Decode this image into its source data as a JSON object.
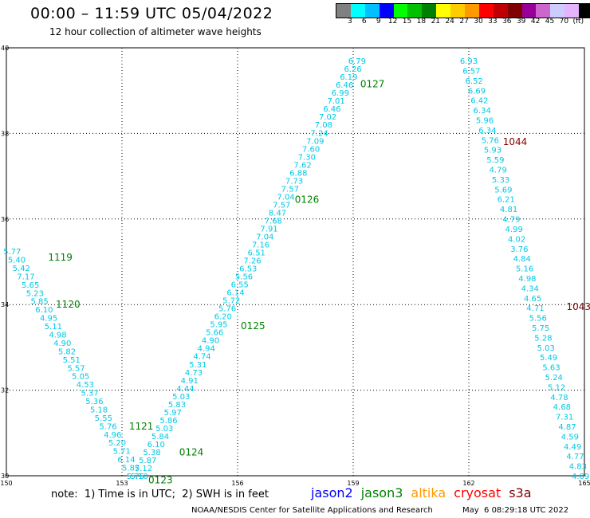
{
  "title": "00:00 – 11:59 UTC 05/04/2022",
  "subtitle": "12 hour collection of altimeter wave heights",
  "colorbar": {
    "colors": [
      "#808080",
      "#00ffff",
      "#00c0ff",
      "#0000ff",
      "#00ff00",
      "#00c000",
      "#008000",
      "#ffff00",
      "#ffcc00",
      "#ff9900",
      "#ff0000",
      "#c00000",
      "#800000",
      "#990099",
      "#cc66cc",
      "#ccccff",
      "#e6b3ff",
      "#000000"
    ],
    "labels": [
      "3",
      "6",
      "9",
      "12",
      "15",
      "18",
      "21",
      "24",
      "27",
      "30",
      "33",
      "36",
      "39",
      "42",
      "45",
      "70",
      "(ft)"
    ]
  },
  "map": {
    "lon_ticks": [
      "150",
      "153",
      "156",
      "159",
      "162",
      "165"
    ],
    "lat_ticks": [
      "30",
      "32",
      "34",
      "36",
      "38",
      "40"
    ],
    "lon_range": [
      150,
      165
    ],
    "lat_range": [
      30,
      40
    ],
    "wave_color": "#00c8e6",
    "tracks": [
      {
        "lon_start": 150.15,
        "lat_start": 35.25,
        "lon_end": 153.35,
        "lat_end": 30.0,
        "values": [
          "5.77",
          "5.40",
          "5.42",
          "7.17",
          "5.65",
          "5.23",
          "5.85",
          "6.10",
          "4.95",
          "5.11",
          "4.98",
          "4.90",
          "5.82",
          "5.51",
          "5.57",
          "5.05",
          "4.53",
          "5.37",
          "5.36",
          "5.18",
          "5.55",
          "5.76",
          "4.96",
          "5.20",
          "5.71",
          "6.14",
          "5.87",
          "5.75"
        ]
      },
      {
        "lon_start": 153.45,
        "lat_start": 30.0,
        "lon_end": 159.1,
        "lat_end": 39.7,
        "values": [
          "5.10",
          "5.12",
          "5.87",
          "5.38",
          "6.10",
          "5.84",
          "5.03",
          "5.86",
          "5.97",
          "5.83",
          "5.03",
          "4.44",
          "4.91",
          "4.73",
          "5.31",
          "4.74",
          "4.94",
          "4.90",
          "5.66",
          "5.95",
          "6.20",
          "5.76",
          "5.72",
          "6.14",
          "6.55",
          "5.56",
          "6.53",
          "7.26",
          "6.51",
          "7.16",
          "7.04",
          "7.91",
          "7.68",
          "8.47",
          "7.57",
          "7.04",
          "7.57",
          "7.73",
          "6.88",
          "7.62",
          "7.30",
          "7.60",
          "7.09",
          "7.24",
          "7.08",
          "7.02",
          "6.46",
          "7.01",
          "6.99",
          "6.46",
          "6.19",
          "6.26",
          "6.79"
        ]
      },
      {
        "lon_start": 162.0,
        "lat_start": 39.7,
        "lon_end": 164.9,
        "lat_end": 30.0,
        "values": [
          "6.93",
          "6.57",
          "6.52",
          "6.69",
          "6.42",
          "6.34",
          "5.96",
          "6.34",
          "5.76",
          "5.93",
          "5.59",
          "4.79",
          "5.33",
          "5.69",
          "6.21",
          "4.81",
          "4.79",
          "4.99",
          "4.02",
          "3.76",
          "4.84",
          "5.16",
          "4.98",
          "4.34",
          "4.65",
          "4.71",
          "5.56",
          "5.75",
          "5.28",
          "5.03",
          "5.49",
          "5.63",
          "5.24",
          "5.12",
          "4.78",
          "4.68",
          "7.31",
          "4.87",
          "4.59",
          "4.49",
          "4.77",
          "4.83",
          "4.09"
        ]
      }
    ],
    "time_labels": [
      {
        "text": "1119",
        "lon": 151.4,
        "lat": 35.1,
        "color": "#008000"
      },
      {
        "text": "1120",
        "lon": 151.6,
        "lat": 34.0,
        "color": "#008000"
      },
      {
        "text": "1121",
        "lon": 153.5,
        "lat": 31.15,
        "color": "#008000"
      },
      {
        "text": "0124",
        "lon": 154.8,
        "lat": 30.55,
        "color": "#008000"
      },
      {
        "text": "0123",
        "lon": 154.0,
        "lat": 29.9,
        "color": "#008000"
      },
      {
        "text": "0125",
        "lon": 156.4,
        "lat": 33.5,
        "color": "#008000"
      },
      {
        "text": "0126",
        "lon": 157.8,
        "lat": 36.45,
        "color": "#008000"
      },
      {
        "text": "0127",
        "lon": 159.5,
        "lat": 39.15,
        "color": "#008000"
      },
      {
        "text": "1044",
        "lon": 163.2,
        "lat": 37.8,
        "color": "#800000"
      },
      {
        "text": "1043",
        "lon": 164.85,
        "lat": 33.95,
        "color": "#800000"
      }
    ]
  },
  "note": "note:  1) Time is in UTC;  2) SWH is in feet",
  "missions": [
    {
      "name": "jason2",
      "color": "#0000ff"
    },
    {
      "name": "jason3",
      "color": "#008000"
    },
    {
      "name": "altika",
      "color": "#ff9900"
    },
    {
      "name": "cryosat",
      "color": "#ff0000"
    },
    {
      "name": "s3a",
      "color": "#800000"
    }
  ],
  "footer_left": "NOAA/NESDIS Center for Satellite Applications and Research",
  "footer_right": "May  6 08:29:18 UTC 2022"
}
